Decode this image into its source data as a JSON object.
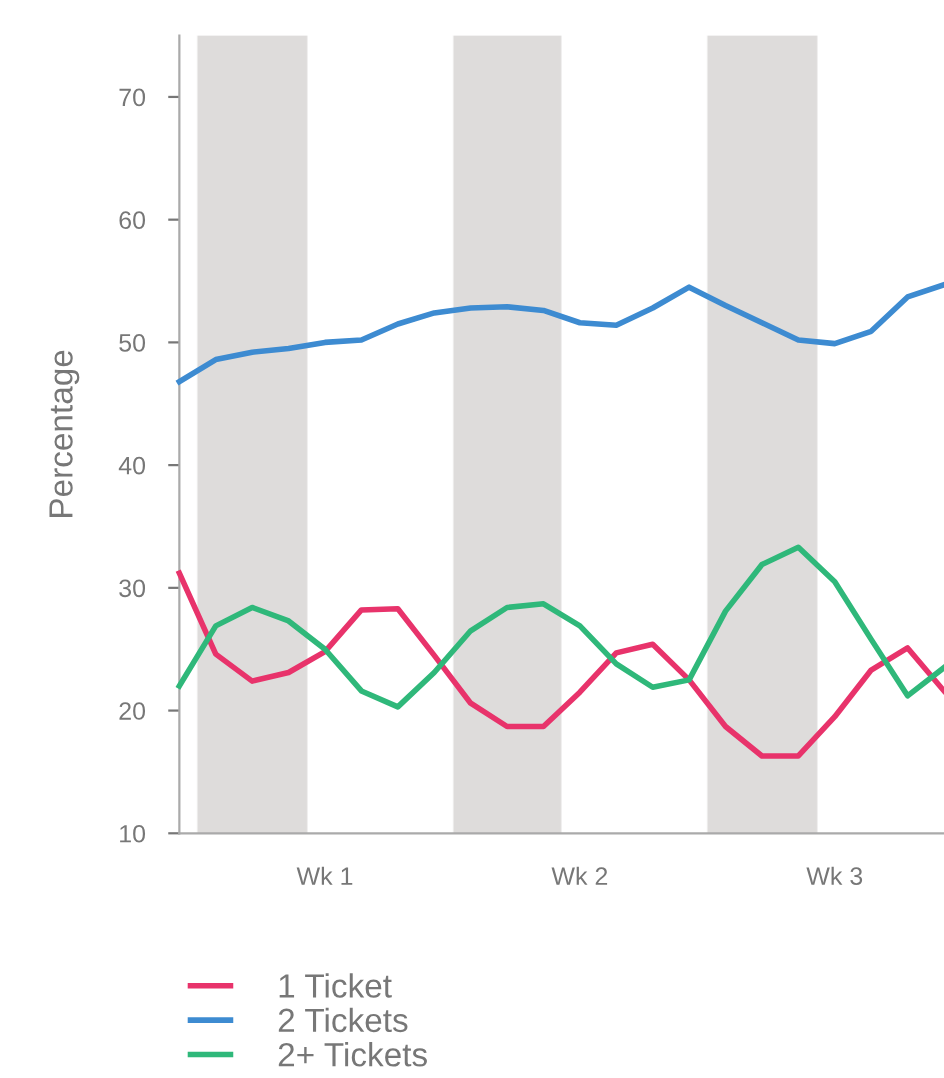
{
  "chart_data": {
    "type": "line",
    "ylabel": "Percentage",
    "categories": [
      null,
      null,
      null,
      null,
      "Wk 1",
      null,
      null,
      null,
      null,
      null,
      null,
      "Wk 2",
      null,
      null,
      null,
      null,
      null,
      null,
      "Wk 3",
      null,
      null,
      null
    ],
    "series": [
      {
        "name": "1 Ticket",
        "color": "#e8336b",
        "values": [
          31.2,
          24.6,
          22.4,
          23.1,
          24.8,
          28.2,
          28.3,
          24.5,
          20.6,
          18.7,
          18.7,
          21.5,
          24.7,
          25.4,
          22.5,
          18.7,
          16.3,
          16.3,
          19.5,
          23.3,
          25.1,
          21.6
        ]
      },
      {
        "name": "2 Tickets",
        "color": "#3d8bd1",
        "values": [
          46.8,
          48.6,
          49.2,
          49.5,
          50.0,
          50.2,
          51.5,
          52.4,
          52.8,
          52.9,
          52.6,
          51.6,
          51.4,
          52.8,
          54.5,
          53.0,
          51.6,
          50.2,
          49.9,
          50.9,
          53.7,
          54.7
        ]
      },
      {
        "name": "2+ Tickets",
        "color": "#2fb87a",
        "values": [
          22.0,
          26.9,
          28.4,
          27.3,
          25.0,
          21.6,
          20.3,
          23.1,
          26.5,
          28.4,
          28.7,
          26.9,
          23.8,
          21.9,
          22.5,
          28.1,
          31.9,
          33.3,
          30.5,
          25.8,
          21.2,
          23.5
        ]
      }
    ],
    "ylim": [
      10,
      75
    ],
    "yticks": [
      10,
      20,
      30,
      40,
      50,
      60,
      70
    ],
    "grid": false,
    "legend": "bottom left",
    "marker": "none",
    "line_style": "solid"
  }
}
